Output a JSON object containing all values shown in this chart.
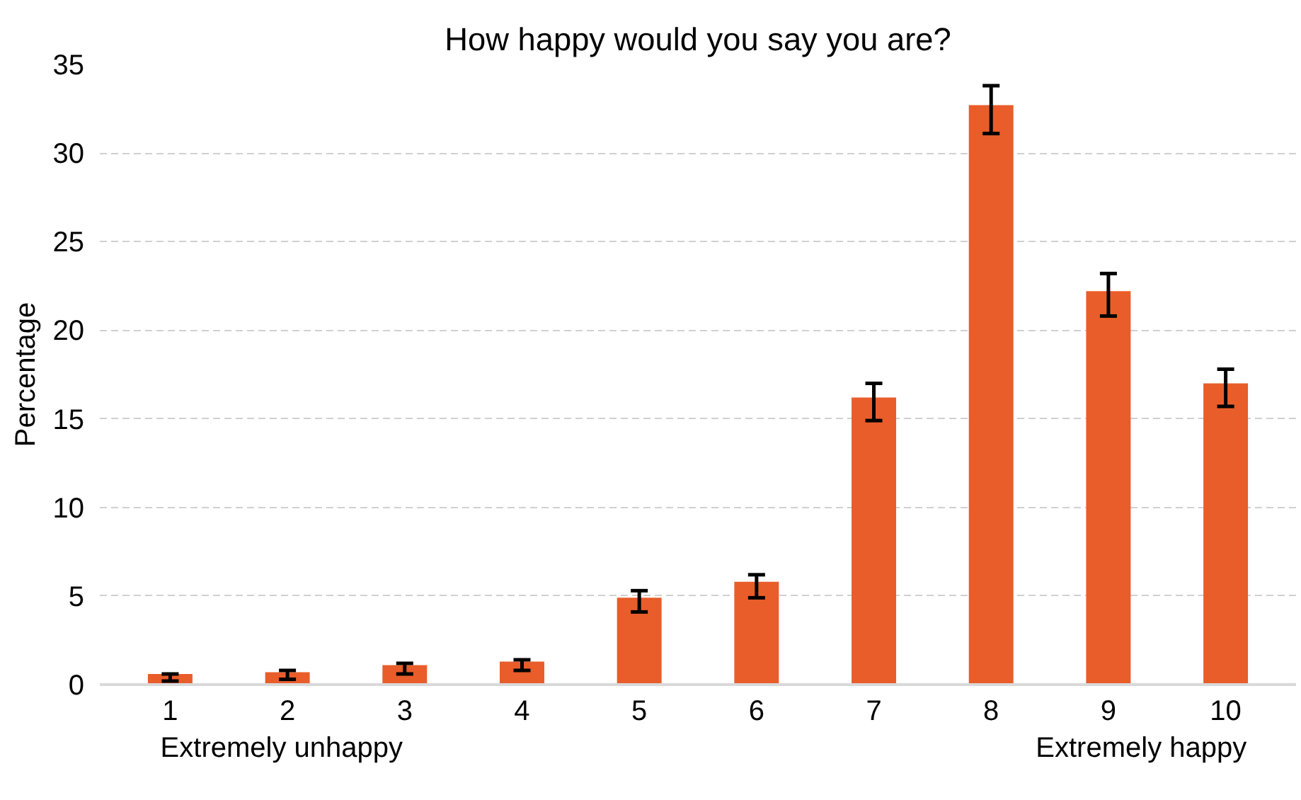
{
  "chart_data": {
    "type": "bar",
    "title": "How happy would you say you are?",
    "ylabel": "Percentage",
    "categories": [
      "1",
      "2",
      "3",
      "4",
      "5",
      "6",
      "7",
      "8",
      "9",
      "10"
    ],
    "values": [
      0.6,
      0.7,
      1.1,
      1.3,
      4.9,
      5.8,
      16.2,
      32.7,
      22.2,
      17.0
    ],
    "errors": [
      [
        0.2,
        0.6
      ],
      [
        0.3,
        0.8
      ],
      [
        0.6,
        1.2
      ],
      [
        0.8,
        1.4
      ],
      [
        4.1,
        5.3
      ],
      [
        4.9,
        6.2
      ],
      [
        14.9,
        17.0
      ],
      [
        31.1,
        33.8
      ],
      [
        20.8,
        23.2
      ],
      [
        15.7,
        17.8
      ]
    ],
    "color": "#e85d2a",
    "ylim": [
      0,
      35
    ],
    "yticks": [
      0,
      5,
      10,
      15,
      20,
      25,
      30,
      35
    ],
    "grid": "y",
    "annotations": [
      "Extremely unhappy",
      "Extremely happy"
    ]
  }
}
